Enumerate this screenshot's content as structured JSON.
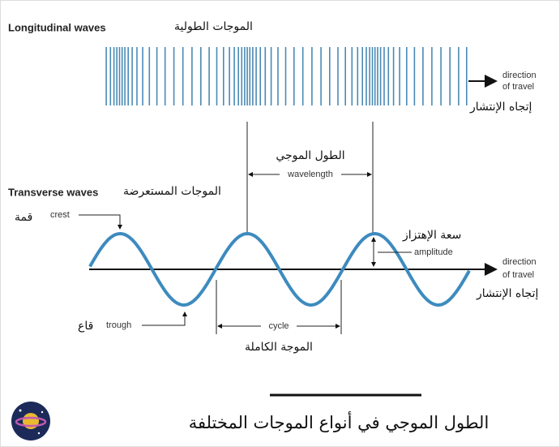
{
  "longitudinal": {
    "label": "Longitudinal waves",
    "label_ar": "الموجات الطولية",
    "direction": [
      "direction",
      "of travel"
    ],
    "direction_ar": "إتجاه الإنتشار"
  },
  "wavelength": {
    "label": "wavelength",
    "label_ar": "الطول الموجي"
  },
  "transverse": {
    "label": "Transverse waves",
    "label_ar": "الموجات المستعرضة",
    "direction": [
      "direction",
      "of travel"
    ],
    "direction_ar": "إتجاه الإنتشار"
  },
  "crest": {
    "label": "crest",
    "label_ar": "قمة"
  },
  "amplitude": {
    "label": "amplitude",
    "label_ar": "سعة الإهتزاز"
  },
  "trough": {
    "label": "trough",
    "label_ar": "قاع"
  },
  "cycle": {
    "label": "cycle",
    "label_ar": "الموجة الكاملة"
  },
  "footer": {
    "title": "الطول الموجي في أنواع الموجات المختلفة"
  }
}
